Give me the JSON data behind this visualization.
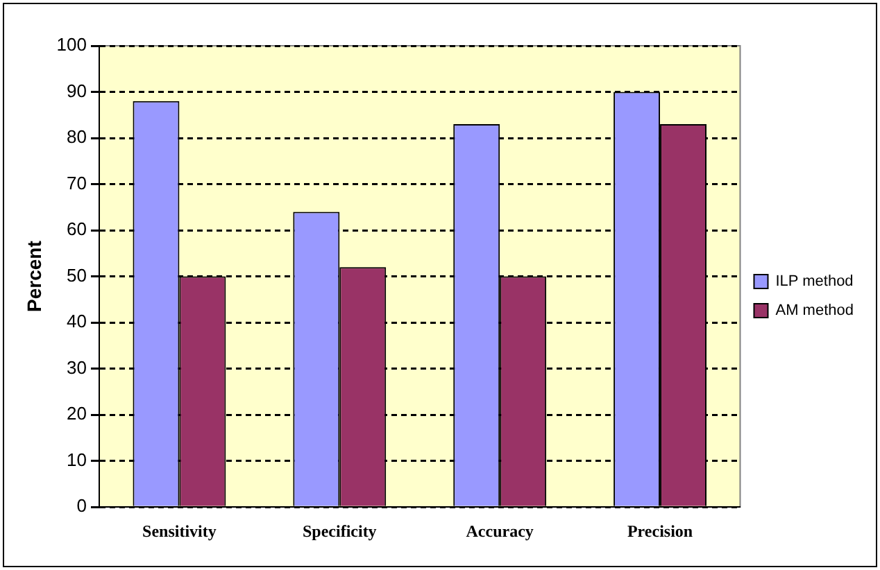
{
  "chart_data": {
    "type": "bar",
    "ylabel": "Percent",
    "categories": [
      "Sensitivity",
      "Specificity",
      "Accuracy",
      "Precision"
    ],
    "series": [
      {
        "name": "ILP method",
        "color": "#9999ff",
        "values": [
          88,
          64,
          83,
          90
        ]
      },
      {
        "name": "AM method",
        "color": "#993366",
        "values": [
          50,
          52,
          50,
          83
        ]
      }
    ],
    "ylim": [
      0,
      100
    ],
    "yticks": [
      0,
      10,
      20,
      30,
      40,
      50,
      60,
      70,
      80,
      90,
      100
    ],
    "grid": "y",
    "legend": "right"
  }
}
